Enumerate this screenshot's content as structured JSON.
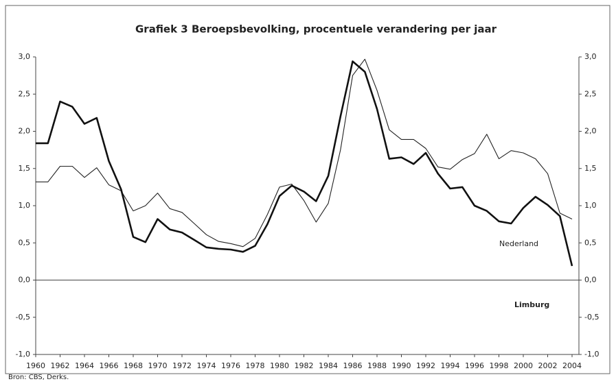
{
  "chart_data": {
    "type": "line",
    "title": "Grafiek 3 Beroepsbevolking, procentuele verandering per jaar",
    "source": "Bron: CBS, Derks.",
    "x": [
      1960,
      1961,
      1962,
      1963,
      1964,
      1965,
      1966,
      1967,
      1968,
      1969,
      1970,
      1971,
      1972,
      1973,
      1974,
      1975,
      1976,
      1977,
      1978,
      1979,
      1980,
      1981,
      1982,
      1983,
      1984,
      1985,
      1986,
      1987,
      1988,
      1989,
      1990,
      1991,
      1992,
      1993,
      1994,
      1995,
      1996,
      1997,
      1998,
      1999,
      2000,
      2001,
      2002,
      2003,
      2004
    ],
    "series": [
      {
        "name": "Nederland",
        "color": "#222222",
        "values": [
          1.32,
          1.32,
          1.53,
          1.53,
          1.38,
          1.51,
          1.28,
          1.2,
          0.93,
          1.0,
          1.17,
          0.96,
          0.91,
          0.76,
          0.61,
          0.52,
          0.49,
          0.45,
          0.56,
          0.88,
          1.25,
          1.29,
          1.07,
          0.78,
          1.03,
          1.75,
          2.75,
          2.97,
          2.55,
          2.02,
          1.89,
          1.89,
          1.77,
          1.52,
          1.49,
          1.62,
          1.7,
          1.96,
          1.63,
          1.74,
          1.71,
          1.63,
          1.43,
          0.9,
          0.82
        ]
      },
      {
        "name": "Limburg",
        "color": "#111111",
        "values": [
          1.84,
          1.84,
          2.4,
          2.33,
          2.1,
          2.18,
          1.6,
          1.22,
          0.58,
          0.51,
          0.82,
          0.68,
          0.64,
          0.54,
          0.44,
          0.42,
          0.41,
          0.38,
          0.46,
          0.75,
          1.13,
          1.27,
          1.19,
          1.06,
          1.4,
          2.2,
          2.94,
          2.8,
          2.3,
          1.63,
          1.65,
          1.56,
          1.71,
          1.43,
          1.23,
          1.25,
          1.0,
          0.93,
          0.79,
          0.76,
          0.97,
          1.12,
          1.01,
          0.86,
          0.19
        ]
      }
    ],
    "xlim": [
      1960,
      2004
    ],
    "xticks": [
      1960,
      1962,
      1964,
      1966,
      1968,
      1970,
      1972,
      1974,
      1976,
      1978,
      1980,
      1982,
      1984,
      1986,
      1988,
      1990,
      1992,
      1994,
      1996,
      1998,
      2000,
      2002,
      2004
    ],
    "ylim": [
      -1,
      3
    ],
    "yticks": [
      {
        "value": -1,
        "label": "-1,0"
      },
      {
        "value": -0.5,
        "label": "-0,5"
      },
      {
        "value": 0,
        "label": "0,0"
      },
      {
        "value": 0.5,
        "label": "0,5"
      },
      {
        "value": 1,
        "label": "1,0"
      },
      {
        "value": 1.5,
        "label": "1,5"
      },
      {
        "value": 2,
        "label": "2,0"
      },
      {
        "value": 2.5,
        "label": "2,5"
      },
      {
        "value": 3,
        "label": "3,0"
      }
    ],
    "grid": false
  }
}
